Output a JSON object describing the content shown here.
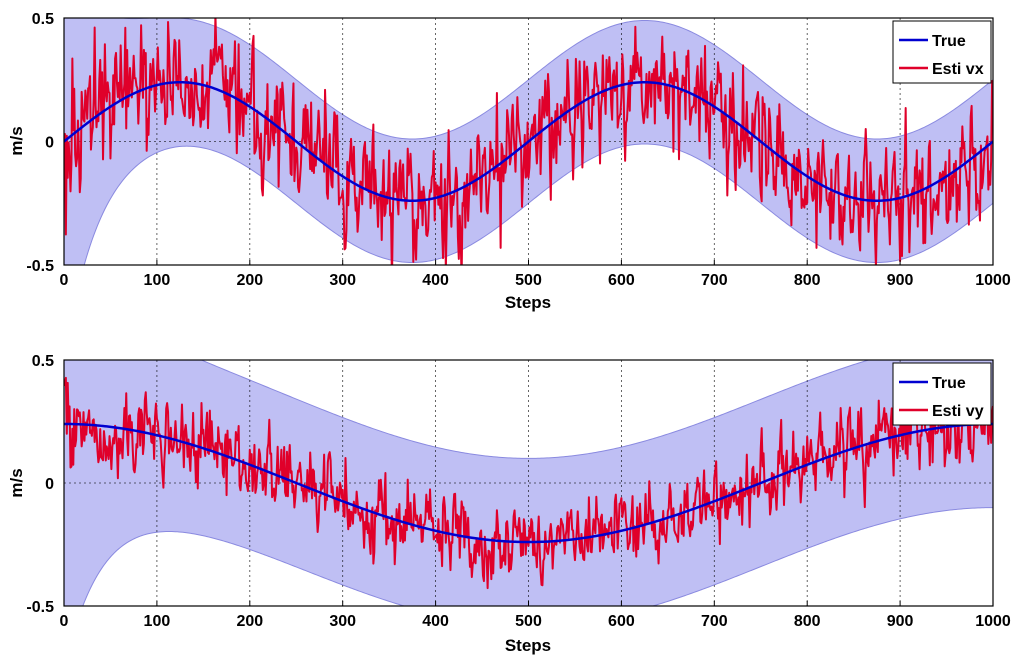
{
  "chart_data": [
    {
      "type": "line",
      "xlabel": "Steps",
      "ylabel": "m/s",
      "xlim": [
        0,
        1000
      ],
      "ylim": [
        -0.5,
        0.5
      ],
      "xticks": [
        "0",
        "100",
        "200",
        "300",
        "400",
        "500",
        "600",
        "700",
        "800",
        "900",
        "1000"
      ],
      "yticks": [
        "-0.5",
        "0",
        "0.5"
      ],
      "grid": true,
      "legend_position": "top-right",
      "series": [
        {
          "name": "True",
          "color": "#0000d0",
          "kind": "sine",
          "amplitude": 0.24,
          "period": 500,
          "phase_deg": 0,
          "offset": 0
        },
        {
          "name": "Esti vx",
          "color": "#e0002a",
          "kind": "noisy_estimate",
          "noise_std": 0.11,
          "seed": 17
        }
      ],
      "band": {
        "color": "#a9a9f0",
        "edge_color": "#8a8ae0",
        "half_width": 0.25,
        "initial_half_width": 0.9,
        "decay_steps": 30
      }
    },
    {
      "type": "line",
      "xlabel": "Steps",
      "ylabel": "m/s",
      "xlim": [
        0,
        1000
      ],
      "ylim": [
        -0.5,
        0.5
      ],
      "xticks": [
        "0",
        "100",
        "200",
        "300",
        "400",
        "500",
        "600",
        "700",
        "800",
        "900",
        "1000"
      ],
      "yticks": [
        "-0.5",
        "0",
        "0.5"
      ],
      "grid": true,
      "legend_position": "top-right",
      "series": [
        {
          "name": "True",
          "color": "#0000d0",
          "kind": "cosine",
          "amplitude": 0.24,
          "period": 1000,
          "phase_deg": 0,
          "offset": 0
        },
        {
          "name": "Esti vy",
          "color": "#e0002a",
          "kind": "noisy_estimate",
          "noise_std": 0.075,
          "seed": 41
        }
      ],
      "band": {
        "color": "#a9a9f0",
        "edge_color": "#8a8ae0",
        "half_width": 0.34,
        "initial_half_width": 1.0,
        "decay_steps": 40
      }
    }
  ]
}
